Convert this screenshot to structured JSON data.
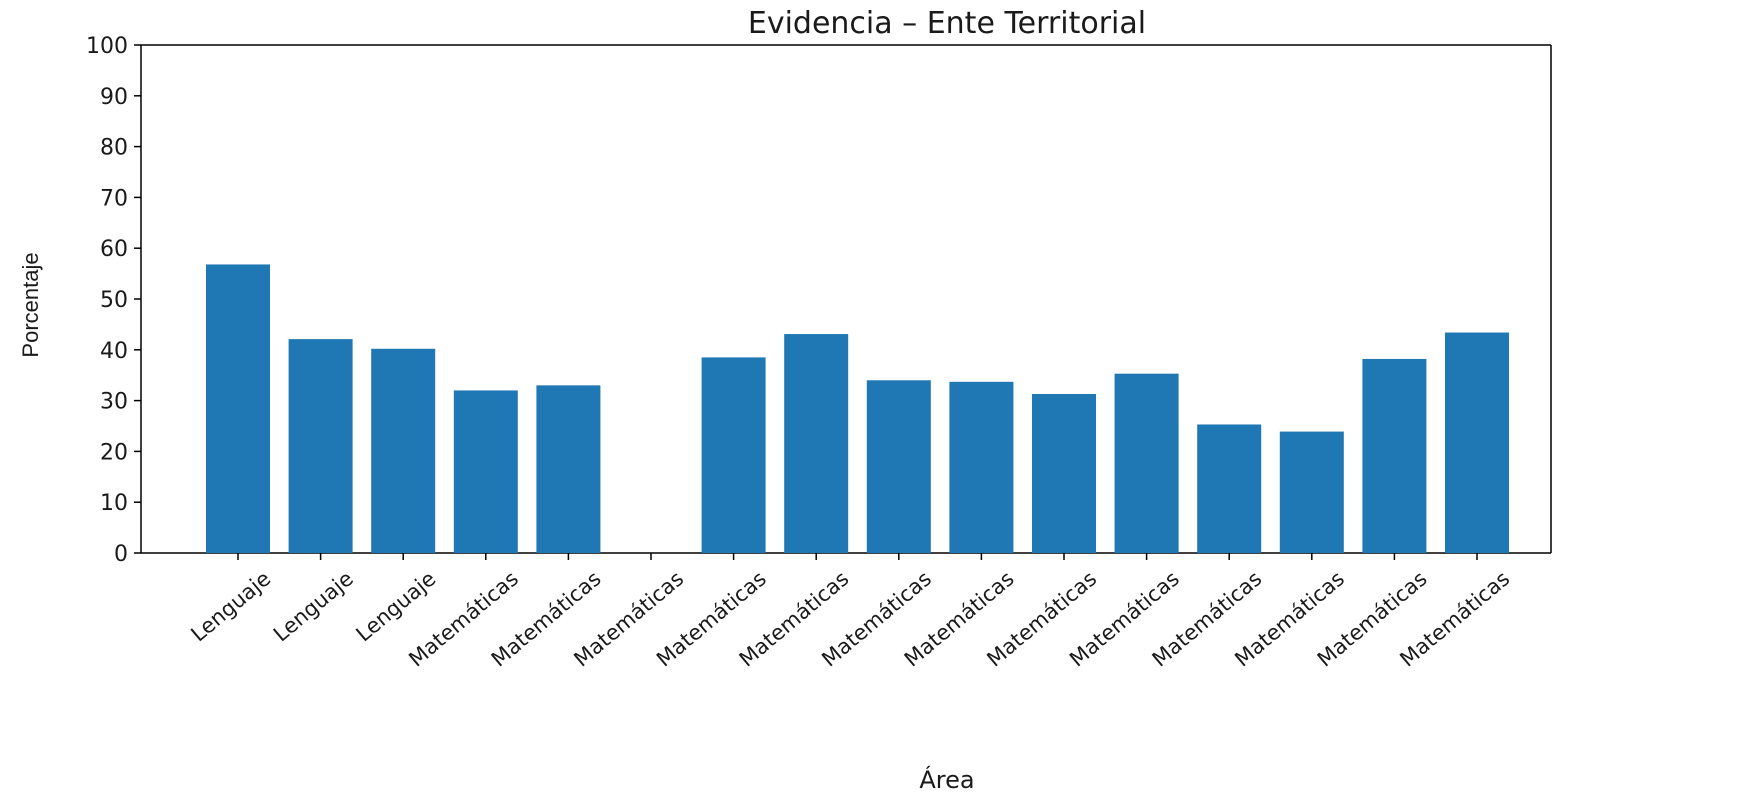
{
  "chart_data": {
    "type": "bar",
    "title": "Evidencia – Ente Territorial",
    "xlabel": "Área",
    "ylabel": "Porcentaje",
    "ylim": [
      0,
      100
    ],
    "yticks": [
      0,
      10,
      20,
      30,
      40,
      50,
      60,
      70,
      80,
      90,
      100
    ],
    "grid": false,
    "bar_color": "#1f77b4",
    "categories": [
      "Lenguaje",
      "Lenguaje",
      "Lenguaje",
      "Matemáticas",
      "Matemáticas",
      "Matemáticas",
      "Matemáticas",
      "Matemáticas",
      "Matemáticas",
      "Matemáticas",
      "Matemáticas",
      "Matemáticas",
      "Matemáticas",
      "Matemáticas",
      "Matemáticas",
      "Matemáticas"
    ],
    "values": [
      56.8,
      42.1,
      40.2,
      32.0,
      33.0,
      0,
      38.5,
      43.1,
      34.0,
      33.7,
      31.3,
      35.3,
      25.3,
      23.9,
      38.2,
      43.4
    ]
  }
}
